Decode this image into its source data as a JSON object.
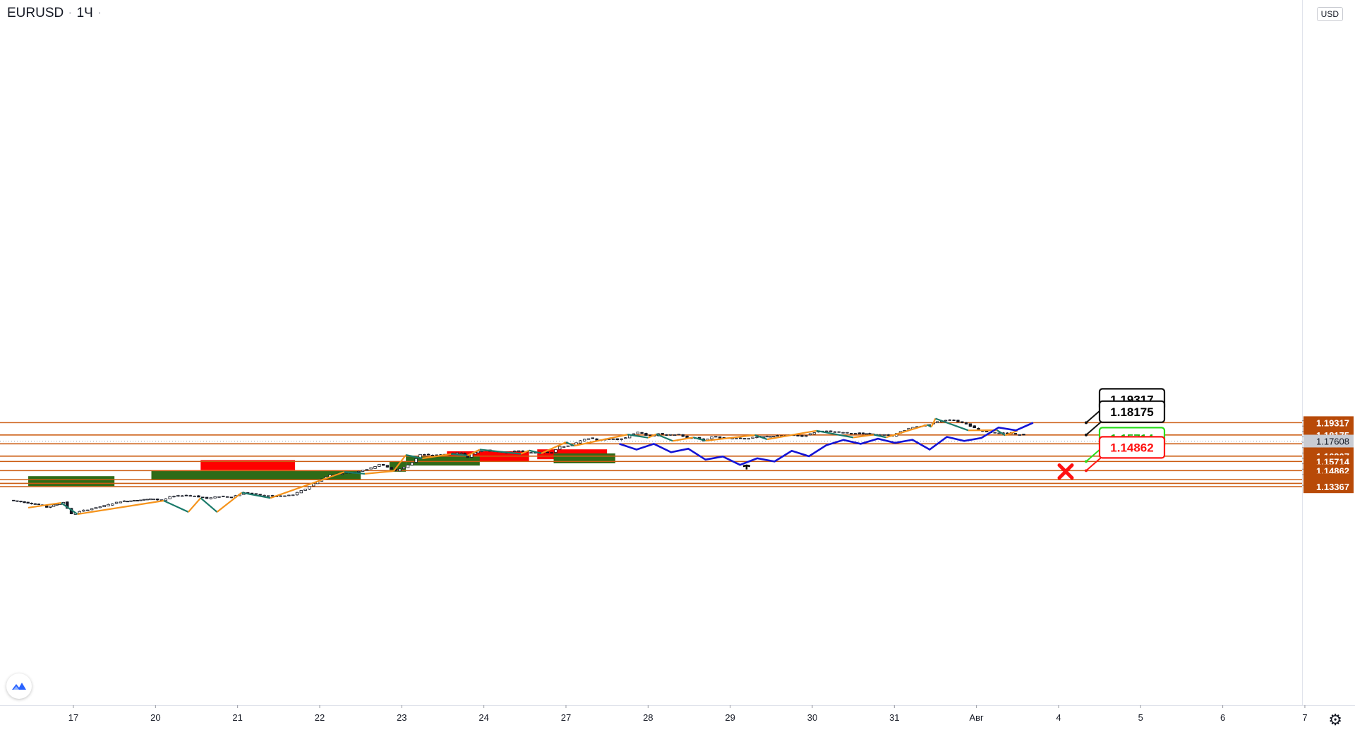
{
  "header": {
    "symbol": "EURUSD",
    "interval": "1Ч",
    "currency": "USD"
  },
  "icons": {
    "logo": "tradingview-logo-icon",
    "settings": "gear-icon",
    "arrow": "up-arrow-icon",
    "stop": "cross-icon"
  },
  "colors": {
    "level_line": "#cc5c12",
    "level_label_bg": "#b84a08",
    "forecast": "#1414d6",
    "zigzag_up": "#f5931b",
    "zigzag_down": "#1a7a6a",
    "supply_zone": "#ff0000",
    "demand_zone": "#2e6b18",
    "target_label_border": "#111111",
    "green_label": "#2bdc1b",
    "red_label": "#ff1414",
    "current_price_bg": "#c9ccd3"
  },
  "chart_data": {
    "type": "candlestick",
    "symbol": "EURUSD",
    "timeframe": "1Ч",
    "ylim": [
      1.1322,
      1.1976
    ],
    "y_ticks": [
      "1.19500",
      "1.19000",
      "1.18500",
      "1.18000",
      "1.17500",
      "1.17000",
      "1.16500",
      "1.16000",
      "1.15500",
      "1.15000",
      "1.14500",
      "1.13500"
    ],
    "x_ticks": [
      {
        "label": "17",
        "day": 0
      },
      {
        "label": "20",
        "day": 1
      },
      {
        "label": "21",
        "day": 2
      },
      {
        "label": "22",
        "day": 3
      },
      {
        "label": "23",
        "day": 4
      },
      {
        "label": "24",
        "day": 5
      },
      {
        "label": "27",
        "day": 6
      },
      {
        "label": "28",
        "day": 7
      },
      {
        "label": "29",
        "day": 8
      },
      {
        "label": "30",
        "day": 9
      },
      {
        "label": "31",
        "day": 10
      },
      {
        "label": "Авг",
        "day": 11
      },
      {
        "label": "4",
        "day": 12
      },
      {
        "label": "5",
        "day": 13
      },
      {
        "label": "6",
        "day": 14
      },
      {
        "label": "7",
        "day": 15
      }
    ],
    "horizontal_levels": [
      "1.19317",
      "1.18175",
      "1.17355",
      "1.16207",
      "1.15714",
      "1.14862",
      "1.14019",
      "1.13682",
      "1.13367"
    ],
    "current_price": "1.17608",
    "callouts": [
      {
        "text": "1.19317",
        "style": "black",
        "price": 1.19317
      },
      {
        "text": "1.18175",
        "style": "black",
        "price": 1.18175
      },
      {
        "text": "1.15714",
        "style": "green",
        "price": 1.15714
      },
      {
        "text": "1.14862",
        "style": "red",
        "price": 1.14862
      }
    ],
    "price_path": [
      [
        -0.75,
        1.415
      ],
      [
        -0.4,
        1.411
      ],
      [
        -0.3,
        1.4085
      ],
      [
        -0.1,
        1.413
      ],
      [
        0,
        1.402
      ],
      [
        0.15,
        1.4055
      ],
      [
        0.3,
        1.408
      ],
      [
        0.45,
        1.4108
      ],
      [
        0.6,
        1.4138
      ],
      [
        0.8,
        1.415
      ],
      [
        1.0,
        1.4162
      ],
      [
        1.1,
        1.4145
      ],
      [
        1.2,
        1.418
      ],
      [
        1.35,
        1.4195
      ],
      [
        1.5,
        1.419
      ],
      [
        1.65,
        1.4165
      ],
      [
        1.8,
        1.4185
      ],
      [
        1.95,
        1.4178
      ],
      [
        2.1,
        1.422
      ],
      [
        2.25,
        1.4202
      ],
      [
        2.4,
        1.419
      ],
      [
        2.55,
        1.4185
      ],
      [
        2.7,
        1.42
      ],
      [
        2.85,
        1.4255
      ],
      [
        3.0,
        1.4328
      ],
      [
        3.15,
        1.4385
      ],
      [
        3.25,
        1.4395
      ],
      [
        3.35,
        1.4405
      ],
      [
        3.45,
        1.4412
      ],
      [
        3.55,
        1.443
      ],
      [
        3.65,
        1.4448
      ],
      [
        3.75,
        1.4485
      ],
      [
        3.85,
        1.4455
      ],
      [
        3.95,
        1.4425
      ],
      [
        4.05,
        1.4455
      ],
      [
        4.15,
        1.45
      ],
      [
        4.25,
        1.4575
      ],
      [
        4.35,
        1.457
      ],
      [
        4.45,
        1.4566
      ],
      [
        4.55,
        1.4575
      ],
      [
        4.65,
        1.4583
      ],
      [
        4.75,
        1.459
      ],
      [
        4.82,
        1.455
      ],
      [
        4.88,
        1.458
      ],
      [
        4.95,
        1.4605
      ],
      [
        5.05,
        1.4615
      ],
      [
        5.15,
        1.46
      ],
      [
        5.3,
        1.4592
      ],
      [
        5.45,
        1.4608
      ],
      [
        5.6,
        1.459
      ],
      [
        5.75,
        1.4598
      ],
      [
        5.85,
        1.4595
      ],
      [
        5.95,
        1.4645
      ],
      [
        6.1,
        1.466
      ],
      [
        6.2,
        1.47
      ],
      [
        6.3,
        1.4725
      ],
      [
        6.4,
        1.471
      ],
      [
        6.5,
        1.4715
      ],
      [
        6.6,
        1.472
      ],
      [
        6.65,
        1.4715
      ],
      [
        6.75,
        1.473
      ],
      [
        6.8,
        1.476
      ],
      [
        6.9,
        1.4778
      ],
      [
        7.0,
        1.4755
      ],
      [
        7.1,
        1.4748
      ],
      [
        7.15,
        1.4768
      ],
      [
        7.25,
        1.4752
      ],
      [
        7.4,
        1.4762
      ],
      [
        7.5,
        1.4725
      ],
      [
        7.6,
        1.4732
      ],
      [
        7.7,
        1.47
      ],
      [
        7.8,
        1.474
      ],
      [
        7.9,
        1.473
      ],
      [
        8.0,
        1.472
      ],
      [
        8.1,
        1.473
      ],
      [
        8.2,
        1.4722
      ],
      [
        8.35,
        1.4735
      ],
      [
        8.55,
        1.4745
      ],
      [
        8.7,
        1.475
      ],
      [
        8.8,
        1.4755
      ],
      [
        8.9,
        1.4742
      ],
      [
        9.0,
        1.4765
      ],
      [
        9.1,
        1.4793
      ],
      [
        9.2,
        1.479
      ],
      [
        9.3,
        1.4785
      ],
      [
        9.45,
        1.4775
      ],
      [
        9.6,
        1.477
      ],
      [
        9.8,
        1.4758
      ],
      [
        9.9,
        1.4755
      ],
      [
        10.0,
        1.4748
      ],
      [
        10.1,
        1.4788
      ],
      [
        10.2,
        1.4815
      ],
      [
        10.3,
        1.4835
      ],
      [
        10.4,
        1.4845
      ],
      [
        10.5,
        1.4865
      ],
      [
        10.6,
        1.489
      ],
      [
        10.7,
        1.4898
      ],
      [
        10.8,
        1.488
      ],
      [
        10.9,
        1.486
      ],
      [
        11.0,
        1.482
      ],
      [
        11.1,
        1.479
      ],
      [
        11.2,
        1.4782
      ],
      [
        11.3,
        1.477
      ],
      [
        11.4,
        1.4775
      ],
      [
        11.5,
        1.4762
      ],
      [
        11.6,
        1.4758
      ]
    ],
    "forecast_path_prices": [
      1.1735,
      1.1682,
      1.1735,
      1.1657,
      1.169,
      1.1588,
      1.1618,
      1.154,
      1.1601,
      1.1571,
      1.167,
      1.162,
      1.1722,
      1.1772,
      1.1735,
      1.1783,
      1.1744,
      1.1773,
      1.1682,
      1.18,
      1.1762,
      1.179,
      1.1887,
      1.186,
      1.1931
    ]
  }
}
